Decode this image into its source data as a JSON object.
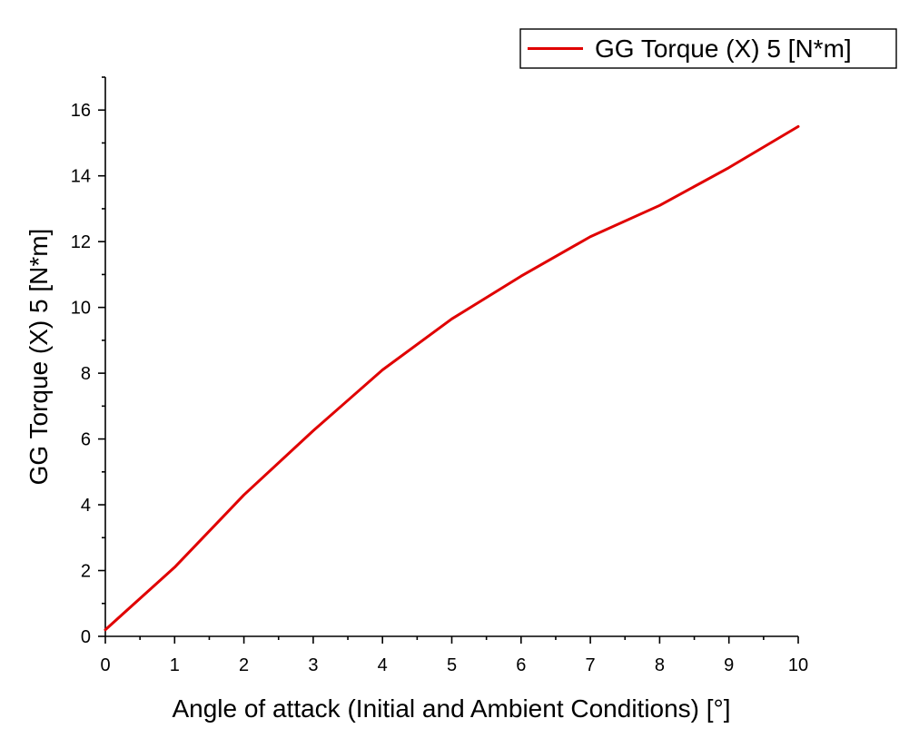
{
  "chart_data": {
    "type": "line",
    "xlabel": "Angle of attack (Initial and Ambient Conditions) [°]",
    "ylabel": "GG Torque (X) 5 [N*m]",
    "xlim": [
      0,
      10
    ],
    "ylim": [
      0,
      17
    ],
    "x_major_ticks": [
      0,
      1,
      2,
      3,
      4,
      5,
      6,
      7,
      8,
      9,
      10
    ],
    "y_major_ticks": [
      0,
      2,
      4,
      6,
      8,
      10,
      12,
      14,
      16
    ],
    "x_tick_labels": [
      "0",
      "1",
      "2",
      "3",
      "4",
      "5",
      "6",
      "7",
      "8",
      "9",
      "10"
    ],
    "y_tick_labels": [
      "0",
      "2",
      "4",
      "6",
      "8",
      "10",
      "12",
      "14",
      "16"
    ],
    "grid": false,
    "legend_position": "top-right",
    "series": [
      {
        "name": "GG Torque (X) 5 [N*m]",
        "color": "#e00000",
        "x": [
          0,
          1,
          2,
          3,
          4,
          5,
          6,
          7,
          8,
          9,
          10
        ],
        "y": [
          0.2,
          2.1,
          4.3,
          6.25,
          8.1,
          9.65,
          10.95,
          12.15,
          13.1,
          14.25,
          15.5
        ]
      }
    ]
  }
}
